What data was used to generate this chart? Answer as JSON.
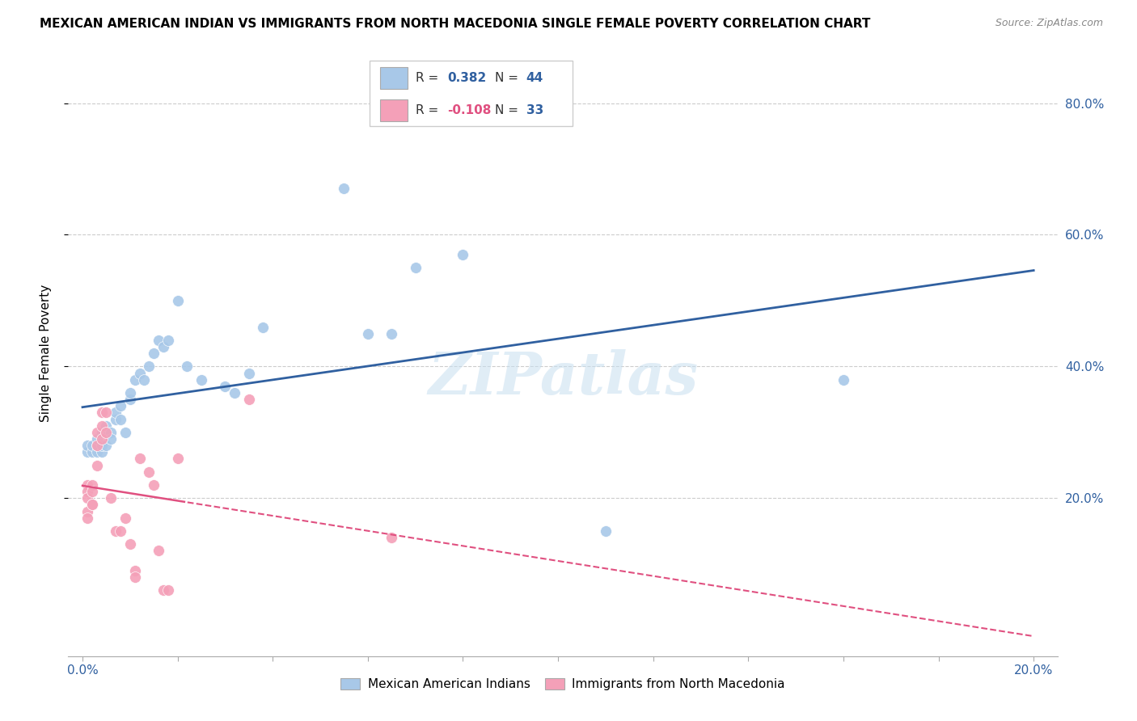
{
  "title": "MEXICAN AMERICAN INDIAN VS IMMIGRANTS FROM NORTH MACEDONIA SINGLE FEMALE POVERTY CORRELATION CHART",
  "source": "Source: ZipAtlas.com",
  "ylabel": "Single Female Poverty",
  "legend1_label": "Mexican American Indians",
  "legend2_label": "Immigrants from North Macedonia",
  "R1": 0.382,
  "N1": 44,
  "R2": -0.108,
  "N2": 33,
  "blue_color": "#a8c8e8",
  "pink_color": "#f4a0b8",
  "blue_line_color": "#3060a0",
  "pink_line_color": "#e05080",
  "watermark": "ZIPatlas",
  "xlim": [
    0.0,
    0.2
  ],
  "ylim": [
    0.0,
    0.85
  ],
  "blue_scatter_x": [
    0.001,
    0.001,
    0.002,
    0.002,
    0.003,
    0.003,
    0.003,
    0.004,
    0.004,
    0.004,
    0.005,
    0.005,
    0.005,
    0.006,
    0.006,
    0.007,
    0.007,
    0.008,
    0.008,
    0.009,
    0.01,
    0.01,
    0.011,
    0.012,
    0.013,
    0.014,
    0.015,
    0.016,
    0.017,
    0.018,
    0.02,
    0.022,
    0.025,
    0.03,
    0.032,
    0.035,
    0.038,
    0.055,
    0.06,
    0.065,
    0.07,
    0.08,
    0.11,
    0.16
  ],
  "blue_scatter_y": [
    0.27,
    0.28,
    0.27,
    0.28,
    0.27,
    0.28,
    0.29,
    0.27,
    0.28,
    0.3,
    0.28,
    0.3,
    0.31,
    0.3,
    0.29,
    0.32,
    0.33,
    0.34,
    0.32,
    0.3,
    0.35,
    0.36,
    0.38,
    0.39,
    0.38,
    0.4,
    0.42,
    0.44,
    0.43,
    0.44,
    0.5,
    0.4,
    0.38,
    0.37,
    0.36,
    0.39,
    0.46,
    0.67,
    0.45,
    0.45,
    0.55,
    0.57,
    0.15,
    0.38
  ],
  "pink_scatter_x": [
    0.001,
    0.001,
    0.001,
    0.001,
    0.001,
    0.002,
    0.002,
    0.002,
    0.002,
    0.003,
    0.003,
    0.003,
    0.004,
    0.004,
    0.004,
    0.005,
    0.005,
    0.006,
    0.007,
    0.008,
    0.009,
    0.01,
    0.011,
    0.011,
    0.012,
    0.014,
    0.015,
    0.016,
    0.017,
    0.018,
    0.02,
    0.035,
    0.065
  ],
  "pink_scatter_y": [
    0.22,
    0.21,
    0.2,
    0.18,
    0.17,
    0.22,
    0.21,
    0.19,
    0.19,
    0.3,
    0.28,
    0.25,
    0.33,
    0.31,
    0.29,
    0.33,
    0.3,
    0.2,
    0.15,
    0.15,
    0.17,
    0.13,
    0.09,
    0.08,
    0.26,
    0.24,
    0.22,
    0.12,
    0.06,
    0.06,
    0.26,
    0.35,
    0.14
  ],
  "ytick_positions": [
    0.2,
    0.4,
    0.6,
    0.8
  ],
  "ytick_labels": [
    "20.0%",
    "40.0%",
    "60.0%",
    "80.0%"
  ],
  "xtick_left_label": "0.0%",
  "xtick_right_label": "20.0%"
}
